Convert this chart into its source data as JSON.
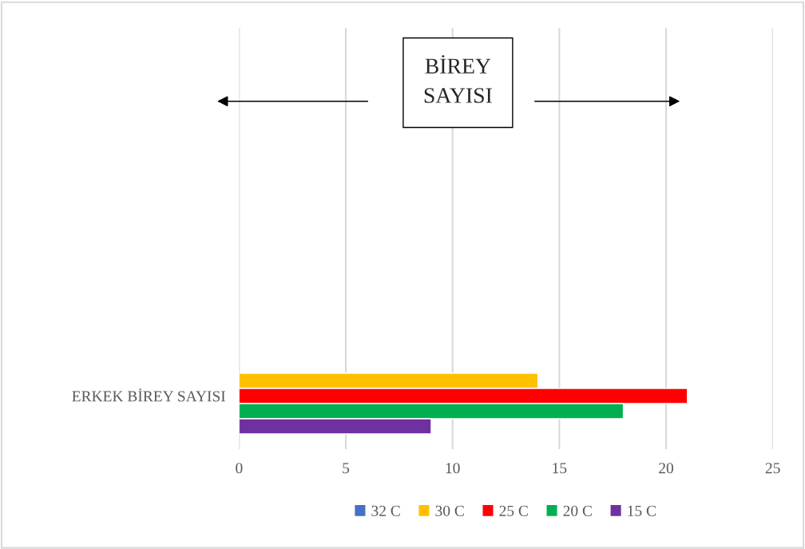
{
  "chart_data": {
    "type": "bar",
    "orientation": "horizontal",
    "categories": [
      "ERKEK BİREY SAYISI"
    ],
    "series": [
      {
        "name": "32 C",
        "color": "#4472c4",
        "values": [
          null
        ]
      },
      {
        "name": "30 C",
        "color": "#ffc000",
        "values": [
          14
        ]
      },
      {
        "name": "25 C",
        "color": "#ff0000",
        "values": [
          21
        ]
      },
      {
        "name": "20 C",
        "color": "#00b050",
        "values": [
          18
        ]
      },
      {
        "name": "15 C",
        "color": "#7030a0",
        "values": [
          9
        ]
      }
    ],
    "xlim": [
      0,
      25
    ],
    "xticks": [
      0,
      5,
      10,
      15,
      20,
      25
    ],
    "annotations": [
      "BİREY\nSAYISI"
    ],
    "grid": "x",
    "legend": "bottom"
  }
}
